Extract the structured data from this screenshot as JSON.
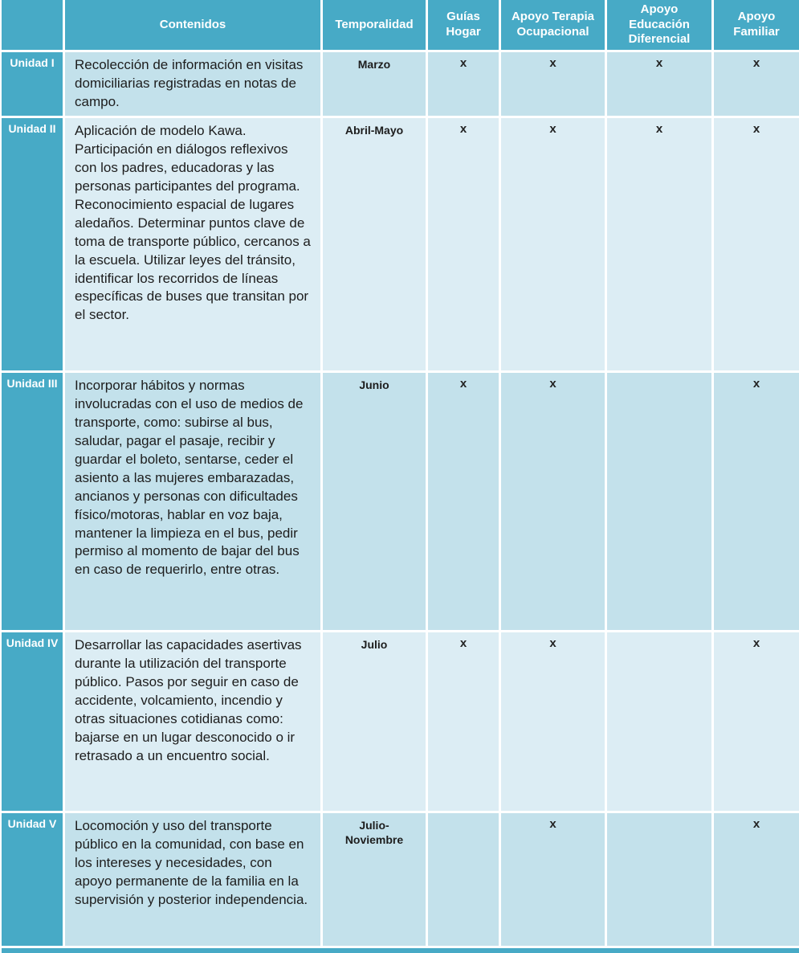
{
  "colors": {
    "teal": "#47AAC6",
    "row_a": "#C3E1EB",
    "row_b": "#DCEDF4",
    "text": "#1D1D1D",
    "border": "#FFFFFF"
  },
  "table": {
    "headers": {
      "contenidos": "Contenidos",
      "temporalidad": "Temporalidad",
      "guias_hogar": "Guías Hogar",
      "apoyo_terapia": "Apoyo Terapia Ocupacional",
      "apoyo_educacion": "Apoyo Educación Diferencial",
      "apoyo_familiar": "Apoyo Familiar"
    },
    "rows": [
      {
        "unit": "Unidad I",
        "content": "Recolección de información en visitas domiciliarias registradas en notas de campo.",
        "temporality": "Marzo",
        "marks": [
          "x",
          "x",
          "x",
          "x"
        ]
      },
      {
        "unit": "Unidad II",
        "content": "Aplicación de modelo Kawa. Participación en diálogos reflexivos con los padres, educadoras y las personas participantes del programa. Reconocimiento espacial de lugares aledaños. Determinar puntos clave de toma de transporte público, cercanos a la escuela. Utilizar leyes del tránsito, identificar los recorridos de líneas específicas de buses que transitan por el sector.",
        "temporality": "Abril-Mayo",
        "marks": [
          "x",
          "x",
          "x",
          "x"
        ]
      },
      {
        "unit": "Unidad III",
        "content": "Incorporar hábitos y normas involucradas con el uso de medios de transporte, como: subirse al bus, saludar, pagar el pasaje, recibir y guardar el boleto, sentarse, ceder el asiento a las mujeres embarazadas, ancianos y personas con dificultades físico/motoras, hablar en voz baja, mantener la limpieza en el bus, pedir permiso al momento de bajar del bus en caso de requerirlo, entre otras.",
        "temporality": "Junio",
        "marks": [
          "x",
          "x",
          "",
          "x"
        ]
      },
      {
        "unit": "Unidad IV",
        "content": "Desarrollar las capacidades asertivas durante la utilización del transporte público. Pasos por seguir en caso de accidente, volcamiento, incendio y otras situaciones cotidianas como: bajarse en un lugar desconocido o ir retrasado a un encuentro social.",
        "temporality": "Julio",
        "marks": [
          "x",
          "x",
          "",
          "x"
        ]
      },
      {
        "unit": "Unidad V",
        "content": "Locomoción y uso del transporte público en la comunidad, con base en los intereses y necesidades, con apoyo permanente de la familia en la supervisión y posterior independencia.",
        "temporality": "Julio-Noviembre",
        "marks": [
          "",
          "x",
          "",
          "x"
        ]
      }
    ]
  }
}
